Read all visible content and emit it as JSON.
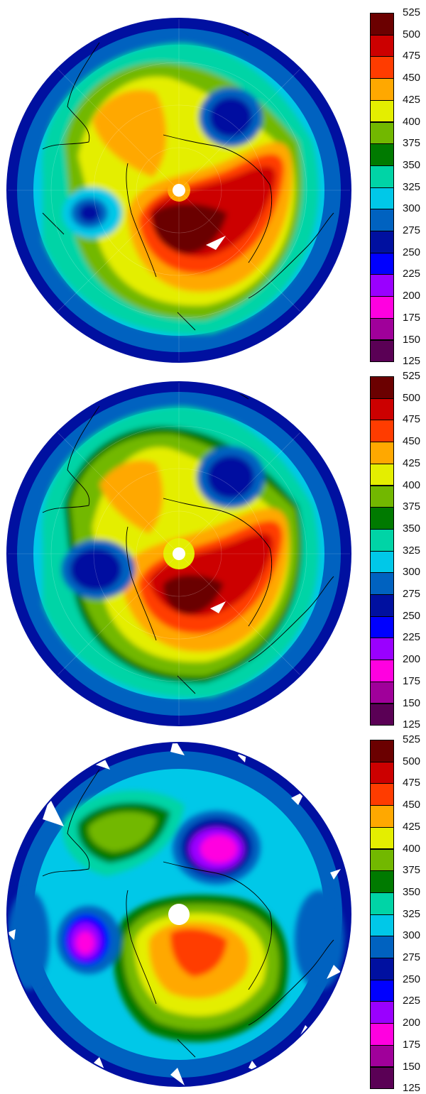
{
  "colorbar": {
    "ticks": [
      "525",
      "500",
      "475",
      "450",
      "425",
      "400",
      "375",
      "350",
      "325",
      "300",
      "275",
      "250",
      "225",
      "200",
      "175",
      "150",
      "125"
    ],
    "colors": [
      "#6b0000",
      "#cc0000",
      "#ff3c00",
      "#ffa800",
      "#e4ee00",
      "#72b800",
      "#007a00",
      "#00d4a6",
      "#00c8e8",
      "#0062c0",
      "#0010a0",
      "#0000ff",
      "#9a00ff",
      "#ff00e0",
      "#a0009a",
      "#5a0055"
    ]
  },
  "panels": [
    {
      "id": "panel-1",
      "missing_wedges": false,
      "center_hole": true
    },
    {
      "id": "panel-2",
      "missing_wedges": false,
      "center_hole": true
    },
    {
      "id": "panel-3",
      "missing_wedges": true,
      "center_hole": true
    }
  ]
}
